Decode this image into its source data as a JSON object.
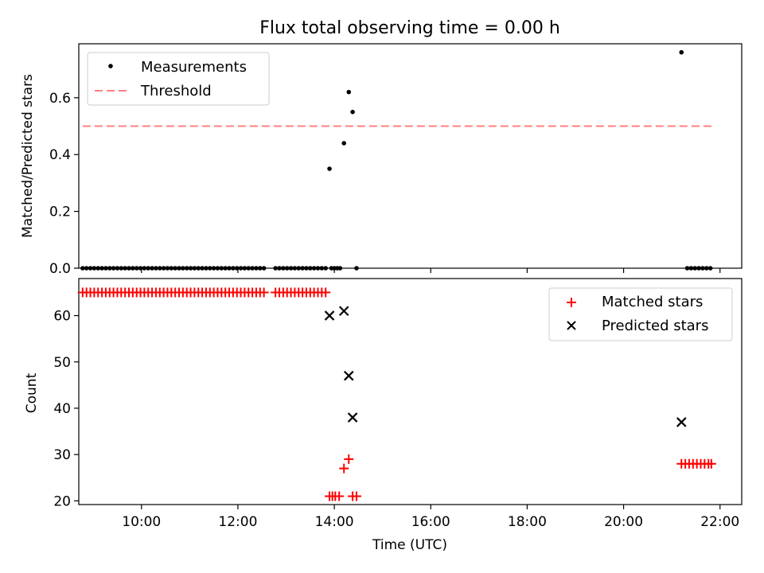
{
  "figure_title": "Flux total observing time = 0.00 h",
  "colors": {
    "measurement": "#000000",
    "threshold": "#ff7f7f",
    "matched": "#ff0000",
    "predicted": "#000000",
    "axis": "#000000"
  },
  "chart_data": [
    {
      "type": "scatter",
      "ylabel": "Matched/Predicted stars",
      "xlim": [
        8.7,
        22.45
      ],
      "ylim": [
        0,
        0.79
      ],
      "yticks": [
        0.0,
        0.2,
        0.4,
        0.6
      ],
      "ytick_labels": [
        "0.0",
        "0.2",
        "0.4",
        "0.6"
      ],
      "xticks": [
        10,
        12,
        14,
        16,
        18,
        20,
        22
      ],
      "legend": {
        "placement": "top-left",
        "entries": [
          "Measurements",
          "Threshold"
        ]
      },
      "threshold": {
        "name": "Threshold",
        "y": 0.5,
        "x_range": [
          8.78,
          21.82
        ]
      },
      "series": [
        {
          "name": "Measurements",
          "x": [
            8.78,
            8.86,
            8.94,
            9.02,
            9.1,
            9.18,
            9.26,
            9.34,
            9.42,
            9.5,
            9.58,
            9.66,
            9.74,
            9.82,
            9.9,
            9.98,
            10.06,
            10.14,
            10.22,
            10.3,
            10.38,
            10.46,
            10.54,
            10.62,
            10.7,
            10.78,
            10.86,
            10.94,
            11.02,
            11.1,
            11.18,
            11.26,
            11.34,
            11.42,
            11.5,
            11.58,
            11.66,
            11.74,
            11.82,
            11.9,
            11.98,
            12.06,
            12.14,
            12.22,
            12.3,
            12.38,
            12.46,
            12.54,
            12.78,
            12.86,
            12.94,
            13.02,
            13.1,
            13.18,
            13.26,
            13.34,
            13.42,
            13.5,
            13.58,
            13.66,
            13.74,
            13.82,
            13.9,
            13.94,
            14.0,
            14.06,
            14.12,
            14.2,
            14.3,
            14.38,
            14.46,
            21.2,
            21.32,
            21.4,
            21.48,
            21.56,
            21.64,
            21.72,
            21.8
          ],
          "y": [
            0,
            0,
            0,
            0,
            0,
            0,
            0,
            0,
            0,
            0,
            0,
            0,
            0,
            0,
            0,
            0,
            0,
            0,
            0,
            0,
            0,
            0,
            0,
            0,
            0,
            0,
            0,
            0,
            0,
            0,
            0,
            0,
            0,
            0,
            0,
            0,
            0,
            0,
            0,
            0,
            0,
            0,
            0,
            0,
            0,
            0,
            0,
            0,
            0,
            0,
            0,
            0,
            0,
            0,
            0,
            0,
            0,
            0,
            0,
            0,
            0,
            0,
            0.35,
            0,
            0,
            0,
            0,
            0.44,
            0.62,
            0.55,
            0,
            0.76,
            0,
            0,
            0,
            0,
            0,
            0,
            0
          ]
        }
      ]
    },
    {
      "type": "scatter",
      "xlabel": "Time (UTC)",
      "ylabel": "Count",
      "xlim": [
        8.7,
        22.45
      ],
      "ylim": [
        19.2,
        68
      ],
      "yticks": [
        20,
        30,
        40,
        50,
        60
      ],
      "ytick_labels": [
        "20",
        "30",
        "40",
        "50",
        "60"
      ],
      "xticks": [
        10,
        12,
        14,
        16,
        18,
        20,
        22
      ],
      "xtick_labels": [
        "10:00",
        "12:00",
        "14:00",
        "16:00",
        "18:00",
        "20:00",
        "22:00"
      ],
      "legend": {
        "placement": "top-right",
        "entries": [
          "Matched stars",
          "Predicted stars"
        ]
      },
      "series": [
        {
          "name": "Matched stars",
          "marker": "plus",
          "x": [
            8.78,
            8.86,
            8.94,
            9.02,
            9.1,
            9.18,
            9.26,
            9.34,
            9.42,
            9.5,
            9.58,
            9.66,
            9.74,
            9.82,
            9.9,
            9.98,
            10.06,
            10.14,
            10.22,
            10.3,
            10.38,
            10.46,
            10.54,
            10.62,
            10.7,
            10.78,
            10.86,
            10.94,
            11.02,
            11.1,
            11.18,
            11.26,
            11.34,
            11.42,
            11.5,
            11.58,
            11.66,
            11.74,
            11.82,
            11.9,
            11.98,
            12.06,
            12.14,
            12.22,
            12.3,
            12.38,
            12.46,
            12.54,
            12.78,
            12.86,
            12.94,
            13.02,
            13.1,
            13.18,
            13.26,
            13.34,
            13.42,
            13.5,
            13.58,
            13.66,
            13.74,
            13.82,
            13.9,
            13.96,
            14.02,
            14.1,
            14.2,
            14.3,
            14.38,
            14.46,
            21.2,
            21.28,
            21.36,
            21.44,
            21.52,
            21.6,
            21.68,
            21.76,
            21.82
          ],
          "y": [
            65,
            65,
            65,
            65,
            65,
            65,
            65,
            65,
            65,
            65,
            65,
            65,
            65,
            65,
            65,
            65,
            65,
            65,
            65,
            65,
            65,
            65,
            65,
            65,
            65,
            65,
            65,
            65,
            65,
            65,
            65,
            65,
            65,
            65,
            65,
            65,
            65,
            65,
            65,
            65,
            65,
            65,
            65,
            65,
            65,
            65,
            65,
            65,
            65,
            65,
            65,
            65,
            65,
            65,
            65,
            65,
            65,
            65,
            65,
            65,
            65,
            65,
            21,
            21,
            21,
            21,
            27,
            29,
            21,
            21,
            28,
            28,
            28,
            28,
            28,
            28,
            28,
            28,
            28
          ]
        },
        {
          "name": "Predicted stars",
          "marker": "x",
          "x": [
            13.9,
            14.2,
            14.3,
            14.38,
            21.2
          ],
          "y": [
            60,
            61,
            47,
            38,
            37
          ]
        }
      ]
    }
  ]
}
